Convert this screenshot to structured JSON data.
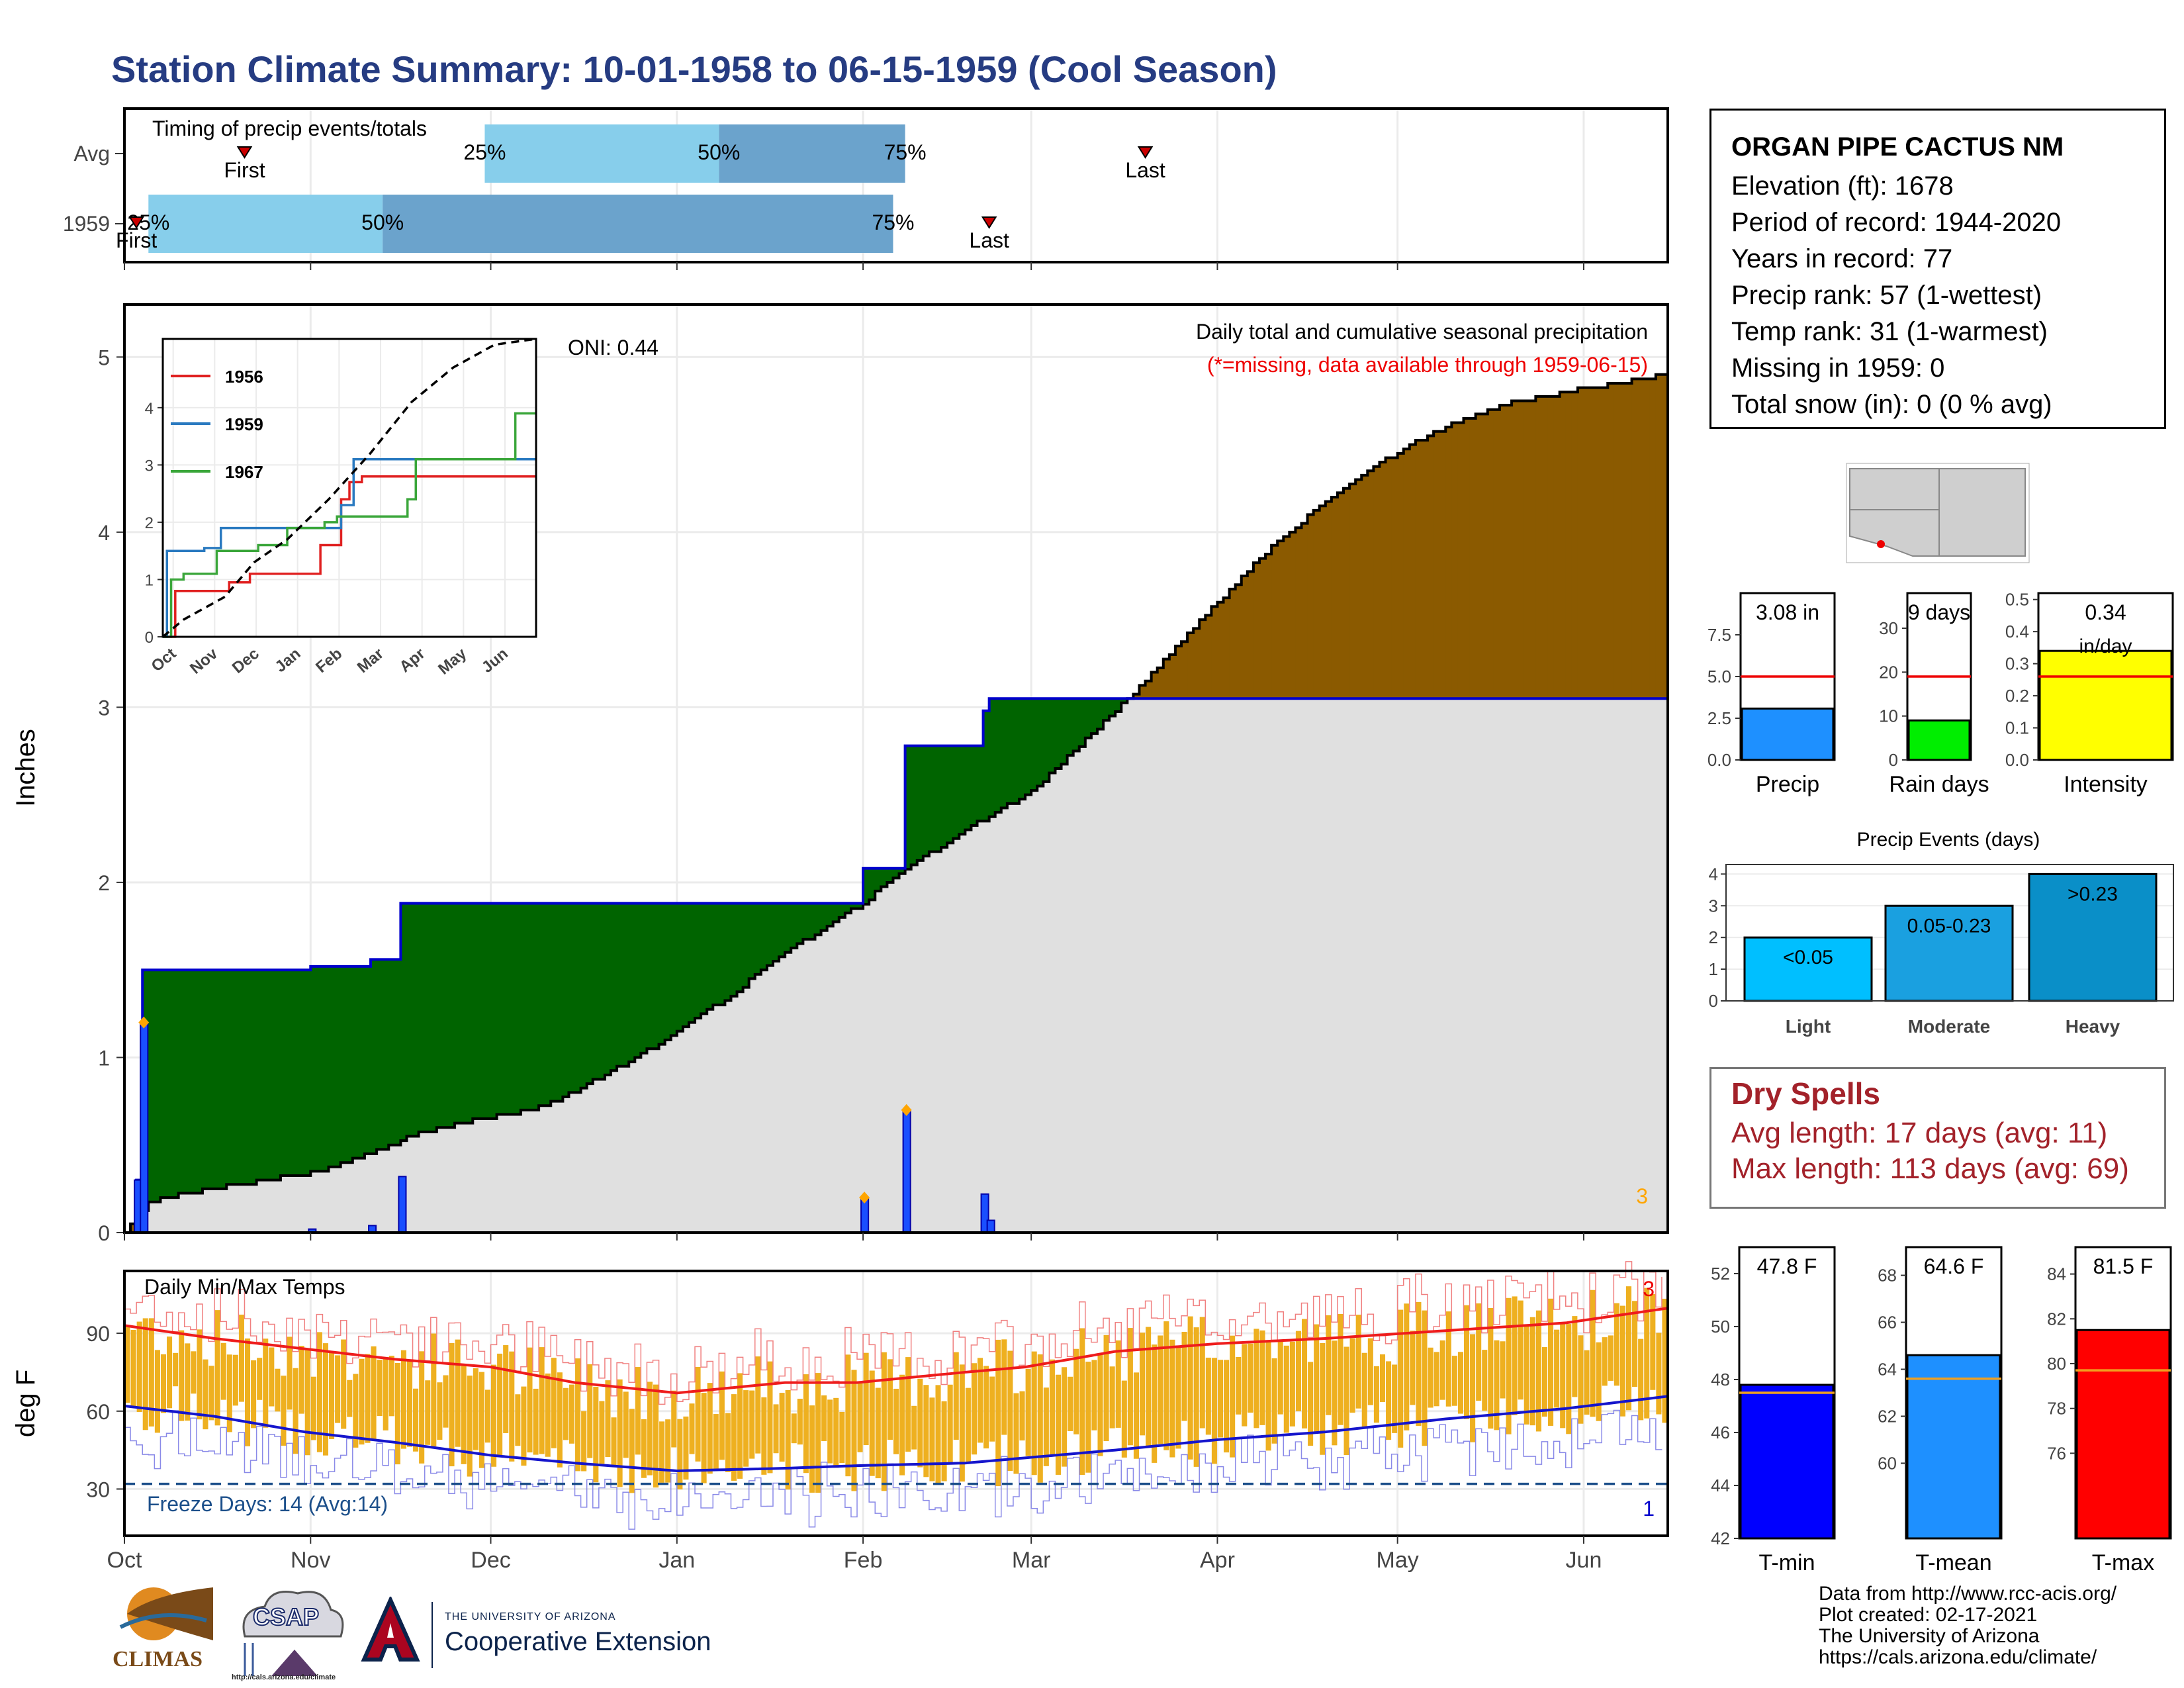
{
  "title": "Station Climate Summary: 10-01-1958 to 06-15-1959 (Cool Season)",
  "station": {
    "name": "ORGAN PIPE CACTUS NM",
    "lines": [
      "Elevation (ft): 1678",
      "Period of record: 1944-2020",
      "Years in record: 77",
      "Precip rank: 57 (1-wettest)",
      "Temp rank: 31 (1-warmest)",
      "Missing in 1959: 0",
      "Total snow (in): 0 (0 % avg)"
    ]
  },
  "dry_spells": {
    "title": "Dry Spells",
    "avg": "Avg length: 17 days (avg: 11)",
    "max": "Max length: 113 days (avg: 69)"
  },
  "credits": [
    "Data from http://www.rcc-acis.org/",
    "Plot created: 02-17-2021",
    "The University of Arizona",
    "https://cals.arizona.edu/climate/"
  ],
  "logos": {
    "climas": "CLIMAS",
    "csap": "CSAP",
    "csap_url": "http://cals.arizona.edu/climate",
    "ua_small": "THE UNIVERSITY OF ARIZONA",
    "ua_big": "Cooperative Extension"
  },
  "month_labels": [
    "Oct",
    "Nov",
    "Dec",
    "Jan",
    "Feb",
    "Mar",
    "Apr",
    "May",
    "Jun"
  ],
  "chart_data": [
    {
      "type": "bar",
      "id": "timing",
      "title": "Timing of precip events/totals",
      "rows": [
        {
          "label": "Avg",
          "first_date": "1958-10-21",
          "last_date": "1959-03-20",
          "q25": "1958-11-30",
          "q50": "1959-01-08",
          "q75": "1959-02-08"
        },
        {
          "label": "1959",
          "first_date": "1958-10-03",
          "last_date": "1959-02-22",
          "q25": "1958-10-05",
          "q50": "1958-11-13",
          "q75": "1959-02-06"
        }
      ],
      "marker_labels": {
        "first": "First",
        "last": "Last",
        "q25": "25%",
        "q50": "50%",
        "q75": "75%"
      },
      "colors": {
        "light": "#87ceeb",
        "dark": "#6ba3cc",
        "marker": "#cc0000"
      }
    },
    {
      "type": "area",
      "id": "precip",
      "title": "Daily total and cumulative seasonal precipitation",
      "subtitle": "(*=missing, data available through 1959-06-15)",
      "oni": "ONI: 0.44",
      "ylabel": "Inches",
      "ylim": [
        0,
        5.3
      ],
      "yticks": [
        0,
        1,
        2,
        3,
        4,
        5
      ],
      "corner_note": "3",
      "avg_cumulative": [
        [
          "1958-10-01",
          0.0
        ],
        [
          "1958-10-05",
          0.18
        ],
        [
          "1958-10-15",
          0.25
        ],
        [
          "1958-11-01",
          0.34
        ],
        [
          "1958-11-10",
          0.44
        ],
        [
          "1958-11-20",
          0.58
        ],
        [
          "1958-12-01",
          0.66
        ],
        [
          "1958-12-10",
          0.72
        ],
        [
          "1958-12-20",
          0.9
        ],
        [
          "1958-12-31",
          1.12
        ],
        [
          "1959-01-10",
          1.36
        ],
        [
          "1959-01-20",
          1.62
        ],
        [
          "1959-01-31",
          1.86
        ],
        [
          "1959-02-10",
          2.12
        ],
        [
          "1959-02-20",
          2.34
        ],
        [
          "1959-03-01",
          2.52
        ],
        [
          "1959-03-10",
          2.82
        ],
        [
          "1959-03-20",
          3.15
        ],
        [
          "1959-04-01",
          3.6
        ],
        [
          "1959-04-10",
          3.92
        ],
        [
          "1959-04-20",
          4.2
        ],
        [
          "1959-05-01",
          4.46
        ],
        [
          "1959-05-10",
          4.62
        ],
        [
          "1959-05-20",
          4.74
        ],
        [
          "1959-06-01",
          4.82
        ],
        [
          "1959-06-15",
          4.9
        ]
      ],
      "year_cumulative": [
        [
          "1958-10-01",
          0.0
        ],
        [
          "1958-10-03",
          0.3
        ],
        [
          "1958-10-04",
          1.5
        ],
        [
          "1958-11-01",
          1.52
        ],
        [
          "1958-11-11",
          1.56
        ],
        [
          "1958-11-16",
          1.88
        ],
        [
          "1958-12-31",
          1.88
        ],
        [
          "1959-01-31",
          1.88
        ],
        [
          "1959-02-01",
          2.08
        ],
        [
          "1959-02-08",
          2.78
        ],
        [
          "1959-02-21",
          2.98
        ],
        [
          "1959-02-22",
          3.05
        ],
        [
          "1959-06-15",
          3.08
        ]
      ],
      "daily_precip": [
        [
          "1958-10-03",
          0.3
        ],
        [
          "1958-10-04",
          1.2
        ],
        [
          "1958-11-01",
          0.02
        ],
        [
          "1958-11-11",
          0.04
        ],
        [
          "1958-11-16",
          0.32
        ],
        [
          "1959-02-01",
          0.2
        ],
        [
          "1959-02-08",
          0.7
        ],
        [
          "1959-02-21",
          0.22
        ],
        [
          "1959-02-22",
          0.07
        ]
      ],
      "highlight_days": [
        "1958-10-04",
        "1959-02-01",
        "1959-02-08"
      ],
      "colors": {
        "above": "#006400",
        "below": "#8b5a00",
        "avg_fill": "#e0e0e0",
        "year_line": "#0000cc",
        "daily": "#1a4fff",
        "highlight": "#ffa500"
      }
    },
    {
      "type": "line",
      "id": "inset",
      "xlabels": [
        "Oct",
        "Nov",
        "Dec",
        "Jan",
        "Feb",
        "Mar",
        "Apr",
        "May",
        "Jun"
      ],
      "ylim": [
        0,
        5.2
      ],
      "yticks": [
        0,
        1,
        2,
        3,
        4
      ],
      "series": [
        {
          "name": "1956",
          "color": "#e02020",
          "points": [
            [
              0,
              0
            ],
            [
              0.3,
              0.8
            ],
            [
              0.9,
              0.8
            ],
            [
              1.6,
              0.95
            ],
            [
              2.1,
              1.1
            ],
            [
              3.7,
              1.1
            ],
            [
              3.8,
              1.6
            ],
            [
              4.2,
              1.6
            ],
            [
              4.3,
              2.4
            ],
            [
              4.5,
              2.7
            ],
            [
              4.8,
              2.8
            ],
            [
              9,
              2.8
            ]
          ]
        },
        {
          "name": "1959",
          "color": "#2a7ac0",
          "points": [
            [
              0,
              0
            ],
            [
              0.1,
              1.5
            ],
            [
              1.0,
              1.55
            ],
            [
              1.4,
              1.9
            ],
            [
              4.1,
              1.9
            ],
            [
              4.3,
              2.3
            ],
            [
              4.6,
              3.1
            ],
            [
              9,
              3.1
            ]
          ]
        },
        {
          "name": "1967",
          "color": "#3aa63a",
          "points": [
            [
              0,
              0
            ],
            [
              0.2,
              1.0
            ],
            [
              0.5,
              1.1
            ],
            [
              1.3,
              1.5
            ],
            [
              2.3,
              1.6
            ],
            [
              3.0,
              1.9
            ],
            [
              3.9,
              2.0
            ],
            [
              4.2,
              2.1
            ],
            [
              5.9,
              2.4
            ],
            [
              6.1,
              3.1
            ],
            [
              8.4,
              3.1
            ],
            [
              8.5,
              3.9
            ],
            [
              8.7,
              3.9
            ],
            [
              9,
              3.9
            ]
          ]
        },
        {
          "name": "",
          "color": "#000000",
          "dashed": true,
          "points": [
            [
              0,
              0
            ],
            [
              0.5,
              0.3
            ],
            [
              1.5,
              0.7
            ],
            [
              2.2,
              1.3
            ],
            [
              3.0,
              1.7
            ],
            [
              4.0,
              2.4
            ],
            [
              5.0,
              3.2
            ],
            [
              6.0,
              4.1
            ],
            [
              7.0,
              4.7
            ],
            [
              8.0,
              5.1
            ],
            [
              9,
              5.2
            ]
          ]
        }
      ]
    },
    {
      "type": "bar",
      "id": "temps",
      "title": "Daily Min/Max Temps",
      "ylabel": "deg F",
      "ylim": [
        12,
        114
      ],
      "yticks": [
        30,
        60,
        90
      ],
      "freeze_label": "Freeze Days: 14 (Avg:14)",
      "freeze_line": 32,
      "corner_top": "3",
      "corner_bottom": "1",
      "avg_max": [
        [
          0,
          93
        ],
        [
          15,
          88
        ],
        [
          30,
          84
        ],
        [
          45,
          80
        ],
        [
          61,
          77
        ],
        [
          75,
          71
        ],
        [
          92,
          67
        ],
        [
          110,
          71
        ],
        [
          122,
          71
        ],
        [
          140,
          75
        ],
        [
          150,
          77
        ],
        [
          165,
          83
        ],
        [
          182,
          86
        ],
        [
          200,
          88
        ],
        [
          220,
          91
        ],
        [
          240,
          94
        ],
        [
          258,
          100
        ]
      ],
      "avg_min": [
        [
          0,
          62
        ],
        [
          15,
          58
        ],
        [
          30,
          52
        ],
        [
          45,
          48
        ],
        [
          61,
          43
        ],
        [
          75,
          40
        ],
        [
          92,
          37
        ],
        [
          110,
          38
        ],
        [
          122,
          39
        ],
        [
          140,
          40
        ],
        [
          150,
          42
        ],
        [
          165,
          45
        ],
        [
          182,
          49
        ],
        [
          200,
          52
        ],
        [
          220,
          57
        ],
        [
          240,
          61
        ],
        [
          258,
          66
        ]
      ],
      "colors": {
        "bars": "#eeb020",
        "max": "#ee1c1c",
        "min": "#1515cc",
        "freeze": "#1c4f8a"
      }
    },
    {
      "type": "bar",
      "id": "precip-small",
      "categories": [
        "Precip",
        "Rain days",
        "Intensity"
      ],
      "panels": [
        {
          "label": "Precip",
          "value": 3.08,
          "value_label": "3.08 in",
          "avg": 5.0,
          "ylim": [
            0,
            10
          ],
          "yticks": [
            0.0,
            2.5,
            5.0,
            7.5
          ],
          "color": "#1e90ff"
        },
        {
          "label": "Rain days",
          "value": 9,
          "value_label": "9 days",
          "avg": 19,
          "ylim": [
            0,
            38
          ],
          "yticks": [
            0,
            10,
            20,
            30
          ],
          "color": "#00ee00"
        },
        {
          "label": "Intensity",
          "value": 0.34,
          "value_label": "0.34",
          "value_label2": "in/day",
          "avg": 0.26,
          "ylim": [
            0,
            0.52
          ],
          "yticks": [
            0.0,
            0.1,
            0.2,
            0.3,
            0.4,
            0.5
          ],
          "color": "#ffff00"
        }
      ]
    },
    {
      "type": "bar",
      "id": "events",
      "title": "Precip Events (days)",
      "categories": [
        "Light",
        "Moderate",
        "Heavy"
      ],
      "values": [
        2,
        3,
        4
      ],
      "bar_labels": [
        "<0.05",
        "0.05-0.23",
        ">0.23"
      ],
      "ylim": [
        0,
        4.3
      ],
      "yticks": [
        0,
        1,
        2,
        3,
        4
      ],
      "colors": [
        "#00bfff",
        "#1aa0e0",
        "#0a8fc8"
      ]
    },
    {
      "type": "bar",
      "id": "temp-small",
      "panels": [
        {
          "label": "T-min",
          "value": 47.8,
          "value_label": "47.8 F",
          "avg": 47.5,
          "ylim": [
            42,
            53
          ],
          "yticks": [
            42,
            44,
            46,
            48,
            50,
            52
          ],
          "color": "#0000ff"
        },
        {
          "label": "T-mean",
          "value": 64.6,
          "value_label": "64.6 F",
          "avg": 63.6,
          "ylim": [
            56.8,
            69.2
          ],
          "yticks": [
            60,
            62,
            64,
            66,
            68
          ],
          "color": "#1e90ff"
        },
        {
          "label": "T-max",
          "value": 81.5,
          "value_label": "81.5 F",
          "avg": 79.7,
          "ylim": [
            72.2,
            85.2
          ],
          "yticks": [
            76,
            78,
            80,
            82,
            84
          ],
          "color": "#ff0000"
        }
      ]
    }
  ]
}
